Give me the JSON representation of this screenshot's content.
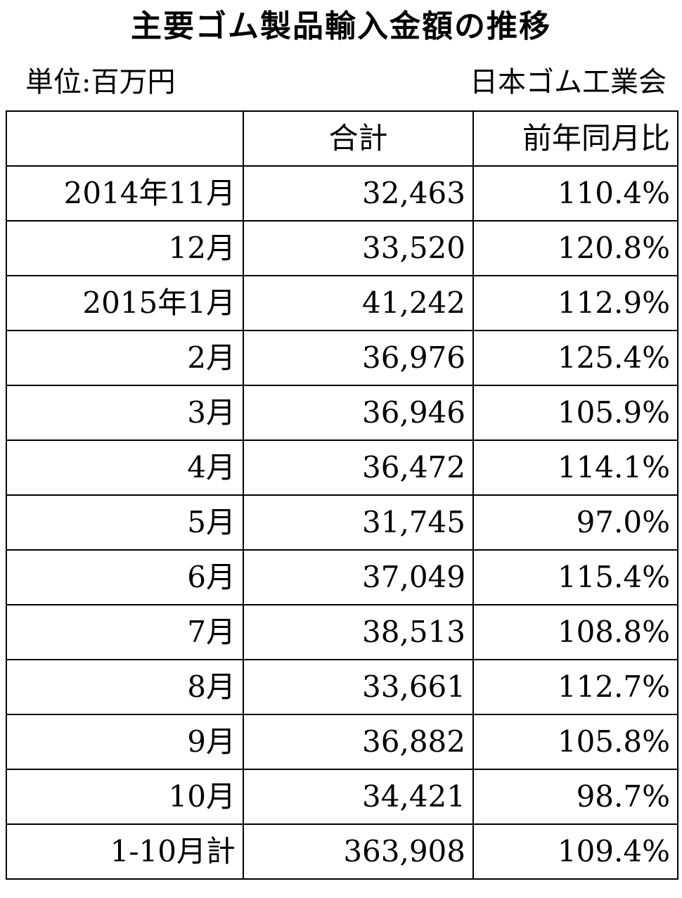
{
  "title": "主要ゴム製品輸入金額の推移",
  "unit": "単位:百万円",
  "source": "日本ゴム工業会",
  "table": {
    "header": [
      "合計",
      "前年同月比"
    ],
    "rows": [
      [
        "2014年11月",
        "32,463",
        "110.4%"
      ],
      [
        "12月",
        "33,520",
        "120.8%"
      ],
      [
        "2015年1月",
        "41,242",
        "112.9%"
      ],
      [
        "2月",
        "36,976",
        "125.4%"
      ],
      [
        "3月",
        "36,946",
        "105.9%"
      ],
      [
        "4月",
        "36,472",
        "114.1%"
      ],
      [
        "5月",
        "31,745",
        "97.0%"
      ],
      [
        "6月",
        "37,049",
        "115.4%"
      ],
      [
        "7月",
        "38,513",
        "108.8%"
      ],
      [
        "8月",
        "33,661",
        "112.7%"
      ],
      [
        "9月",
        "36,882",
        "105.8%"
      ],
      [
        "10月",
        "34,421",
        "98.7%"
      ],
      [
        "1-10月計",
        "363,908",
        "109.4%"
      ]
    ]
  }
}
